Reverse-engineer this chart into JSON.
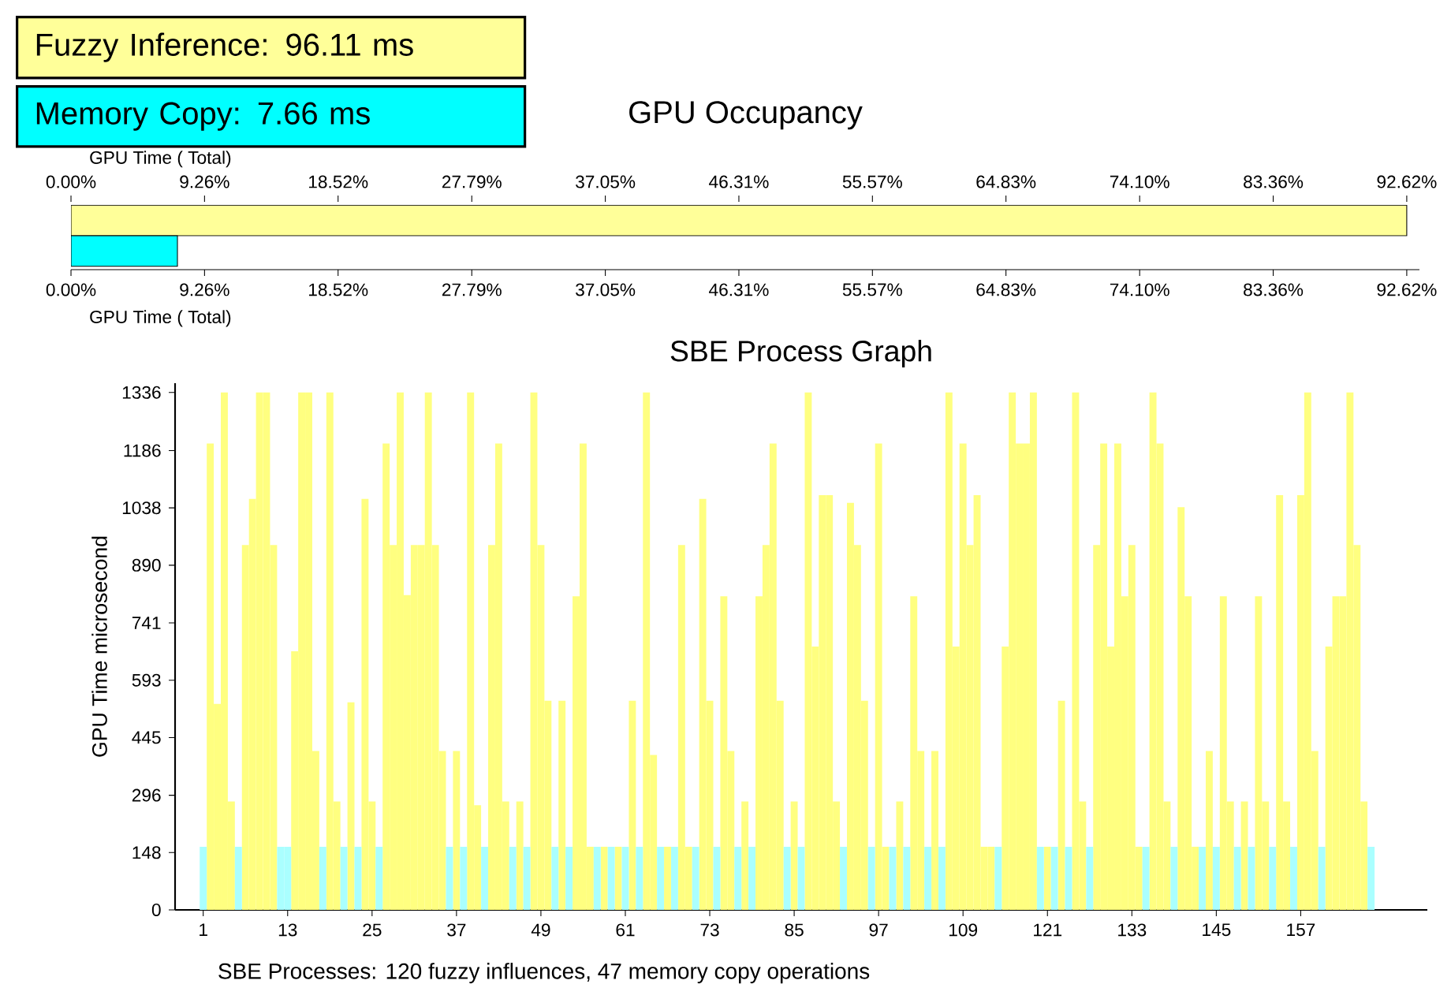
{
  "chart_data": [
    {
      "type": "bar",
      "orientation": "horizontal",
      "title": "GPU Occupancy",
      "legend": "top left",
      "categories": [
        null
      ],
      "series": [
        {
          "name": "Fuzzy Inference: 96.11 ms",
          "color": "#ffff99",
          "values": [
            92.62
          ]
        },
        {
          "name": "Memory Copy: 7.66 ms",
          "color": "#00ffff",
          "values": [
            7.38
          ]
        }
      ],
      "xlabel": "GPU Time ( Total)",
      "x2label": "GPU Time ( Total)",
      "xlim": [
        0,
        93.5
      ],
      "x2lim": [
        0,
        93.5
      ],
      "xticks": [
        {
          "value": 0,
          "label": "0.00%"
        },
        {
          "value": 9.26,
          "label": "9.26%"
        },
        {
          "value": 18.52,
          "label": "18.52%"
        },
        {
          "value": 27.79,
          "label": "27.79%"
        },
        {
          "value": 37.05,
          "label": "37.05%"
        },
        {
          "value": 46.31,
          "label": "46.31%"
        },
        {
          "value": 55.57,
          "label": "55.57%"
        },
        {
          "value": 64.83,
          "label": "64.83%"
        },
        {
          "value": 74.1,
          "label": "74.10%"
        },
        {
          "value": 83.36,
          "label": "83.36%"
        },
        {
          "value": 92.62,
          "label": "92.62%"
        }
      ],
      "x2ticks": [
        {
          "value": 0,
          "label": "0.00%"
        },
        {
          "value": 9.26,
          "label": "9.26%"
        },
        {
          "value": 18.52,
          "label": "18.52%"
        },
        {
          "value": 27.79,
          "label": "27.79%"
        },
        {
          "value": 37.05,
          "label": "37.05%"
        },
        {
          "value": 46.31,
          "label": "46.31%"
        },
        {
          "value": 55.57,
          "label": "55.57%"
        },
        {
          "value": 64.83,
          "label": "64.83%"
        },
        {
          "value": 74.1,
          "label": "74.10%"
        },
        {
          "value": 83.36,
          "label": "83.36%"
        },
        {
          "value": 92.62,
          "label": "92.62%"
        }
      ]
    },
    {
      "type": "bar",
      "title": "SBE Process Graph",
      "xlabel": "SBE Processes: 120 fuzzy influences, 47 memory copy operations",
      "ylabel": "GPU Time microsecond",
      "x": [
        1,
        2,
        3,
        4,
        5,
        6,
        7,
        8,
        9,
        10,
        11,
        12,
        13,
        14,
        15,
        16,
        17,
        18,
        19,
        20,
        21,
        22,
        23,
        24,
        25,
        26,
        27,
        28,
        29,
        30,
        31,
        32,
        33,
        34,
        35,
        36,
        37,
        38,
        39,
        40,
        41,
        42,
        43,
        44,
        45,
        46,
        47,
        48,
        49,
        50,
        51,
        52,
        53,
        54,
        55,
        56,
        57,
        58,
        59,
        60,
        61,
        62,
        63,
        64,
        65,
        66,
        67,
        68,
        69,
        70,
        71,
        72,
        73,
        74,
        75,
        76,
        77,
        78,
        79,
        80,
        81,
        82,
        83,
        84,
        85,
        86,
        87,
        88,
        89,
        90,
        91,
        92,
        93,
        94,
        95,
        96,
        97,
        98,
        99,
        100,
        101,
        102,
        103,
        104,
        105,
        106,
        107,
        108,
        109,
        110,
        111,
        112,
        113,
        114,
        115,
        116,
        117,
        118,
        119,
        120,
        121,
        122,
        123,
        124,
        125,
        126,
        127,
        128,
        129,
        130,
        131,
        132,
        133,
        134,
        135,
        136,
        137,
        138,
        139,
        140,
        141,
        142,
        143,
        144,
        145,
        146,
        147,
        148,
        149,
        150,
        151,
        152,
        153,
        154,
        155,
        156,
        157,
        158,
        159,
        160,
        161,
        162,
        163,
        164,
        165,
        166,
        167
      ],
      "xlim": [
        -3,
        175
      ],
      "xticks": [
        1,
        13,
        25,
        37,
        49,
        61,
        73,
        85,
        97,
        109,
        121,
        133,
        145,
        157
      ],
      "ylim": [
        0,
        1360
      ],
      "yticks": [
        0,
        148,
        296,
        445,
        593,
        741,
        890,
        1038,
        1186,
        1336
      ],
      "series": [
        {
          "color": "#ffff80",
          "values": [
            null,
            1204,
            532,
            1336,
            280,
            null,
            942,
            1061,
            1336,
            1336,
            942,
            null,
            null,
            668,
            1336,
            1336,
            410,
            null,
            1336,
            280,
            null,
            536,
            null,
            1061,
            280,
            null,
            1204,
            942,
            1336,
            813,
            942,
            942,
            1336,
            942,
            410,
            null,
            410,
            null,
            1336,
            270,
            null,
            942,
            1204,
            280,
            null,
            280,
            null,
            1336,
            942,
            540,
            null,
            540,
            null,
            810,
            1204,
            163,
            null,
            163,
            null,
            163,
            null,
            540,
            null,
            1336,
            400,
            null,
            163,
            null,
            942,
            163,
            null,
            1061,
            540,
            null,
            810,
            410,
            null,
            280,
            null,
            810,
            942,
            1204,
            540,
            null,
            280,
            null,
            1336,
            680,
            1071,
            1071,
            280,
            null,
            1051,
            942,
            540,
            null,
            1204,
            163,
            null,
            280,
            null,
            810,
            410,
            null,
            410,
            null,
            1336,
            680,
            1204,
            942,
            1071,
            163,
            163,
            null,
            680,
            1336,
            1204,
            1204,
            1336,
            null,
            163,
            null,
            540,
            null,
            1336,
            280,
            null,
            942,
            1204,
            680,
            1204,
            810,
            942,
            163,
            null,
            1336,
            1204,
            280,
            null,
            1040,
            810,
            163,
            null,
            410,
            null,
            810,
            280,
            null,
            280,
            null,
            810,
            280,
            null,
            1071,
            280,
            null,
            1071,
            1336,
            410,
            null,
            680,
            810,
            810,
            1336,
            942,
            280,
            null
          ]
        },
        {
          "color": "#aaffff",
          "values": [
            163,
            null,
            null,
            null,
            null,
            163,
            null,
            null,
            null,
            null,
            null,
            163,
            163,
            null,
            null,
            null,
            null,
            163,
            null,
            null,
            163,
            null,
            163,
            null,
            null,
            163,
            null,
            null,
            null,
            null,
            null,
            null,
            null,
            null,
            null,
            163,
            null,
            163,
            null,
            null,
            163,
            null,
            null,
            null,
            163,
            null,
            163,
            null,
            null,
            null,
            163,
            null,
            163,
            null,
            null,
            null,
            163,
            null,
            163,
            null,
            163,
            null,
            163,
            null,
            null,
            163,
            null,
            163,
            null,
            null,
            163,
            null,
            null,
            163,
            null,
            null,
            163,
            null,
            163,
            null,
            null,
            null,
            null,
            163,
            null,
            163,
            null,
            null,
            null,
            null,
            null,
            163,
            null,
            null,
            null,
            163,
            null,
            null,
            163,
            null,
            163,
            null,
            null,
            163,
            null,
            163,
            null,
            null,
            null,
            null,
            null,
            null,
            null,
            163,
            null,
            null,
            null,
            null,
            null,
            163,
            null,
            163,
            null,
            163,
            null,
            null,
            163,
            null,
            null,
            null,
            null,
            null,
            null,
            null,
            163,
            null,
            null,
            null,
            163,
            null,
            null,
            null,
            163,
            null,
            163,
            null,
            null,
            163,
            null,
            163,
            null,
            null,
            163,
            null,
            null,
            163,
            null,
            null,
            null,
            163,
            null,
            null,
            null,
            null,
            null,
            null,
            163
          ]
        }
      ]
    }
  ]
}
